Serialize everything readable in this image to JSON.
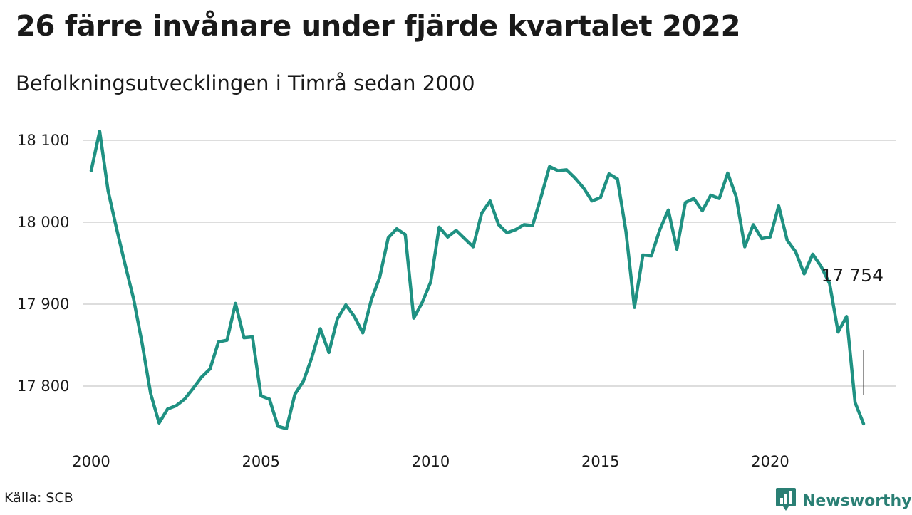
{
  "header": {
    "title": "26 färre invånare under fjärde kvartalet 2022",
    "subtitle": "Befolkningsutvecklingen i Timrå sedan 2000"
  },
  "footer": {
    "source": "Källa: SCB",
    "brand": "Newsworthy"
  },
  "colors": {
    "line": "#1f9182",
    "grid": "#dddddd",
    "brand": "#2a7f74"
  },
  "icons": {
    "brand_logo": "bar-chart-speech-bubble-icon"
  },
  "chart_data": {
    "type": "line",
    "x_start": 2000.0,
    "x_step": 0.25,
    "values": [
      18063,
      18111,
      18038,
      17992,
      17948,
      17906,
      17852,
      17791,
      17755,
      17772,
      17776,
      17784,
      17797,
      17811,
      17821,
      17854,
      17856,
      17901,
      17859,
      17860,
      17788,
      17784,
      17751,
      17748,
      17790,
      17806,
      17835,
      17870,
      17841,
      17882,
      17899,
      17885,
      17865,
      17905,
      17933,
      17981,
      17992,
      17985,
      17883,
      17902,
      17927,
      17994,
      17982,
      17990,
      17980,
      17970,
      18011,
      18026,
      17997,
      17987,
      17991,
      17997,
      17996,
      18031,
      18068,
      18063,
      18064,
      18054,
      18042,
      18026,
      18030,
      18059,
      18053,
      17989,
      17896,
      17960,
      17959,
      17991,
      18015,
      17967,
      18024,
      18029,
      18014,
      18033,
      18029,
      18060,
      18031,
      17970,
      17997,
      17980,
      17982,
      18020,
      17978,
      17964,
      17937,
      17961,
      17946,
      17925,
      17866,
      17885,
      17780,
      17754
    ],
    "yticks": [
      17800,
      17900,
      18000,
      18100
    ],
    "ytick_labels": [
      "17 800",
      "17 900",
      "18 000",
      "18 100"
    ],
    "xticks": [
      2000,
      2005,
      2010,
      2015,
      2020
    ],
    "xtick_labels": [
      "2000",
      "2005",
      "2010",
      "2015",
      "2020"
    ],
    "xlim": [
      2000,
      2023
    ],
    "ylim": [
      17740,
      18120
    ],
    "grid": true,
    "annotation": "17 754"
  }
}
